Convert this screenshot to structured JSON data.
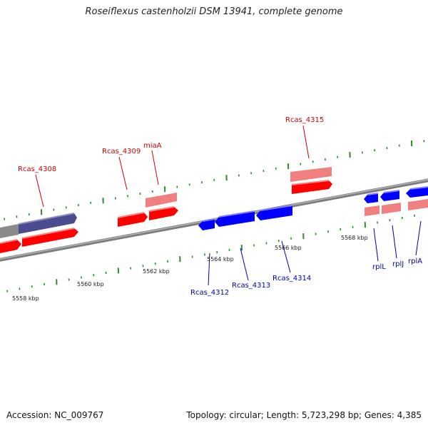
{
  "title": "Roseiflexus castenholzii DSM 13941, complete genome",
  "footer": {
    "accession": "Accession: NC_009767",
    "stats": "Topology: circular; Length: 5,723,298 bp; Genes: 4,385"
  },
  "colors": {
    "forward_gene": "#ff0000",
    "forward_gene_light": "#f08080",
    "reverse_gene": "#0000ff",
    "other_gene": "#4b4b8f",
    "backbone": "#8a8a8a",
    "tick": "#2e8b2e",
    "forward_label": "#cc0000",
    "reverse_label": "#0000aa"
  },
  "scale_labels": [
    "5558 kbp",
    "5560 kbp",
    "5562 kbp",
    "5564 kbp",
    "5566 kbp",
    "5568 kbp"
  ],
  "gene_labels": [
    {
      "name": "Rcas_4308",
      "strand": "forward"
    },
    {
      "name": "Rcas_4309",
      "strand": "forward"
    },
    {
      "name": "miaA",
      "strand": "forward"
    },
    {
      "name": "Rcas_4315",
      "strand": "forward"
    },
    {
      "name": "Rcas_4312",
      "strand": "reverse"
    },
    {
      "name": "Rcas_4313",
      "strand": "reverse"
    },
    {
      "name": "Rcas_4314",
      "strand": "reverse"
    },
    {
      "name": "rplL",
      "strand": "reverse"
    },
    {
      "name": "rplJ",
      "strand": "reverse"
    },
    {
      "name": "rplA",
      "strand": "reverse"
    }
  ]
}
